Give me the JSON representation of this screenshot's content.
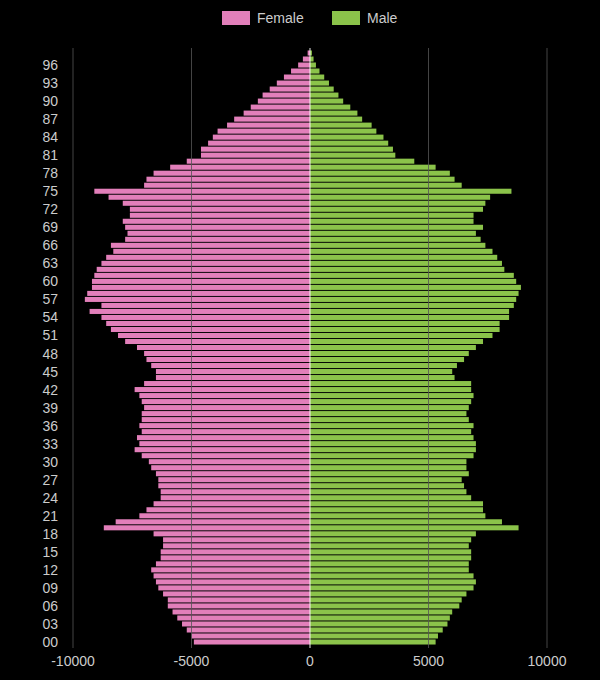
{
  "chart_data": {
    "type": "bar",
    "orientation": "horizontal",
    "grid": true,
    "legend": "top",
    "categories": [
      "00",
      null,
      null,
      "03",
      null,
      null,
      "06",
      null,
      null,
      "09",
      null,
      null,
      "12",
      null,
      null,
      "15",
      null,
      null,
      "18",
      null,
      null,
      "21",
      null,
      null,
      "24",
      null,
      null,
      "27",
      null,
      null,
      "30",
      null,
      null,
      "33",
      null,
      null,
      "36",
      null,
      null,
      "39",
      null,
      null,
      "42",
      null,
      null,
      "45",
      null,
      null,
      "48",
      null,
      null,
      "51",
      null,
      null,
      "54",
      null,
      null,
      "57",
      null,
      null,
      "60",
      null,
      null,
      "63",
      null,
      null,
      "66",
      null,
      null,
      "69",
      null,
      null,
      "72",
      null,
      null,
      "75",
      null,
      null,
      "78",
      null,
      null,
      "81",
      null,
      null,
      "84",
      null,
      null,
      "87",
      null,
      null,
      "90",
      null,
      null,
      "93",
      null,
      null,
      "96",
      null,
      null
    ],
    "series": [
      {
        "name": "Female",
        "color": "#e27fba",
        "values": [
          -4900,
          -5000,
          -5200,
          -5400,
          -5600,
          -5800,
          -6000,
          -6000,
          -6200,
          -6400,
          -6500,
          -6600,
          -6700,
          -6500,
          -6300,
          -6300,
          -6200,
          -6200,
          -6600,
          -8700,
          -8200,
          -7200,
          -6900,
          -6600,
          -6300,
          -6300,
          -6400,
          -6400,
          -6500,
          -6700,
          -6800,
          -7100,
          -7400,
          -7200,
          -7300,
          -7100,
          -7200,
          -7100,
          -7100,
          -7000,
          -7100,
          -7200,
          -7400,
          -7000,
          -6500,
          -6500,
          -6700,
          -6900,
          -7000,
          -7300,
          -7800,
          -8100,
          -8400,
          -8600,
          -8800,
          -9300,
          -8800,
          -9500,
          -9400,
          -9200,
          -9200,
          -9100,
          -9000,
          -8800,
          -8600,
          -8300,
          -8400,
          -7800,
          -7700,
          -7800,
          -7900,
          -7600,
          -7600,
          -7900,
          -8500,
          -9100,
          -7000,
          -6900,
          -6600,
          -5900,
          -5200,
          -4600,
          -4600,
          -4300,
          -4100,
          -3900,
          -3500,
          -3200,
          -2800,
          -2500,
          -2200,
          -2000,
          -1700,
          -1400,
          -1100,
          -800,
          -500,
          -300,
          -100
        ]
      },
      {
        "name": "Male",
        "color": "#8bc34a",
        "values": [
          5300,
          5400,
          5600,
          5800,
          5900,
          6000,
          6300,
          6400,
          6600,
          6900,
          7000,
          6900,
          6700,
          6700,
          6800,
          6800,
          6700,
          6800,
          7000,
          8800,
          8100,
          7400,
          7300,
          7300,
          6800,
          6600,
          6500,
          6400,
          6700,
          6600,
          6600,
          6900,
          7000,
          7000,
          6900,
          6800,
          6900,
          6700,
          6600,
          6700,
          6800,
          6900,
          6800,
          6800,
          6100,
          6000,
          6200,
          6500,
          6700,
          7000,
          7300,
          7700,
          8000,
          8000,
          8400,
          8400,
          8600,
          8700,
          8800,
          8900,
          8700,
          8600,
          8200,
          8100,
          7900,
          7700,
          7400,
          7200,
          7000,
          7300,
          6900,
          6900,
          7300,
          7400,
          7600,
          8500,
          6400,
          6100,
          5900,
          5300,
          4400,
          3600,
          3500,
          3300,
          3100,
          2800,
          2600,
          2200,
          2000,
          1700,
          1400,
          1200,
          1000,
          800,
          600,
          400,
          250,
          150,
          80
        ]
      }
    ],
    "xlim": [
      -10000,
      10000
    ],
    "xticks": [
      -10000,
      -5000,
      0,
      5000,
      10000
    ]
  }
}
